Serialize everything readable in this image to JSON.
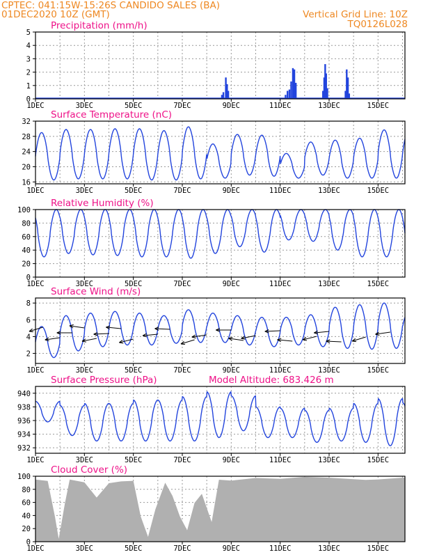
{
  "header": {
    "line1_left": "CPTEC:  041:15W-15:26S  CANDIDO SALES (BA)",
    "line2_left": "01DEC2020 10Z (GMT)",
    "line1_right": "Vertical Grid Line: 10Z",
    "line2_right": "TQ0126L028"
  },
  "colors": {
    "header": "#ee8822",
    "title": "#ee1188",
    "series": "#2244dd",
    "cloud": "#b0b0b0",
    "grid": "#999999"
  },
  "x_tick_labels": [
    "1DEC",
    "3DEC",
    "5DEC",
    "7DEC",
    "9DEC",
    "11DEC",
    "13DEC",
    "15DEC"
  ],
  "x_ticks_days": [
    0,
    2,
    4,
    6,
    8,
    10,
    12,
    14
  ],
  "x_domain_days": [
    0,
    15.1
  ],
  "panels": [
    {
      "key": "precip",
      "title": "Precipitation (mm/h)",
      "yticks": [
        0,
        1,
        2,
        3,
        4,
        5
      ],
      "ylim": [
        0,
        5
      ]
    },
    {
      "key": "temp",
      "title": "Surface Temperature (nC)",
      "yticks": [
        16,
        20,
        24,
        28,
        32
      ],
      "ylim": [
        15.5,
        32
      ]
    },
    {
      "key": "rh",
      "title": "Relative Humidity (%)",
      "yticks": [
        0,
        20,
        40,
        60,
        80,
        100
      ],
      "ylim": [
        0,
        100
      ]
    },
    {
      "key": "wind",
      "title": "Surface Wind (m/s)",
      "yticks": [
        2,
        4,
        6,
        8
      ],
      "ylim": [
        0.8,
        8.6
      ]
    },
    {
      "key": "pres",
      "title": "Surface Pressure (hPa)",
      "extra": "Model Altitude: 683.426 m",
      "yticks": [
        932,
        934,
        936,
        938,
        940
      ],
      "ylim": [
        931.2,
        941
      ]
    },
    {
      "key": "cloud",
      "title": "Cloud Cover (%)",
      "yticks": [
        0,
        20,
        40,
        60,
        80,
        100
      ],
      "ylim": [
        0,
        100
      ]
    }
  ],
  "chart_data": [
    {
      "type": "bar",
      "title": "Precipitation (mm/h)",
      "ylim": [
        0,
        5
      ],
      "x_unit": "days since 01DEC2020 10Z",
      "events": [
        {
          "day": 7.62,
          "mm_h": 0.3
        },
        {
          "day": 7.68,
          "mm_h": 0.5
        },
        {
          "day": 7.78,
          "mm_h": 1.6
        },
        {
          "day": 7.83,
          "mm_h": 1.1
        },
        {
          "day": 7.88,
          "mm_h": 0.6
        },
        {
          "day": 10.22,
          "mm_h": 0.3
        },
        {
          "day": 10.3,
          "mm_h": 0.6
        },
        {
          "day": 10.38,
          "mm_h": 0.7
        },
        {
          "day": 10.45,
          "mm_h": 1.3
        },
        {
          "day": 10.52,
          "mm_h": 2.3
        },
        {
          "day": 10.58,
          "mm_h": 2.2
        },
        {
          "day": 10.64,
          "mm_h": 1.2
        },
        {
          "day": 11.75,
          "mm_h": 0.6
        },
        {
          "day": 11.8,
          "mm_h": 1.6
        },
        {
          "day": 11.84,
          "mm_h": 2.6
        },
        {
          "day": 11.88,
          "mm_h": 1.9
        },
        {
          "day": 11.93,
          "mm_h": 0.8
        },
        {
          "day": 12.67,
          "mm_h": 0.6
        },
        {
          "day": 12.72,
          "mm_h": 2.2
        },
        {
          "day": 12.77,
          "mm_h": 1.6
        },
        {
          "day": 12.82,
          "mm_h": 0.4
        }
      ]
    },
    {
      "type": "line",
      "title": "Surface Temperature (nC)",
      "ylim": [
        15.5,
        32
      ],
      "daily_min": [
        16.5,
        16.8,
        16.8,
        16.8,
        16.5,
        16.5,
        16.8,
        17.0,
        17.8,
        17.5,
        17.0,
        17.8,
        17.0,
        17.0,
        17.0,
        16.5
      ],
      "daily_max": [
        29.0,
        29.8,
        29.8,
        30.0,
        30.0,
        29.5,
        30.5,
        26.0,
        28.5,
        28.3,
        23.5,
        26.5,
        27.0,
        27.5,
        29.7,
        29.5
      ]
    },
    {
      "type": "line",
      "title": "Relative Humidity (%)",
      "ylim": [
        0,
        100
      ],
      "daily_min": [
        30,
        35,
        33,
        32,
        30,
        30,
        28,
        35,
        45,
        37,
        55,
        53,
        40,
        30,
        30,
        30
      ],
      "daily_max": [
        100,
        100,
        100,
        100,
        100,
        100,
        100,
        100,
        100,
        100,
        100,
        100,
        100,
        100,
        100,
        100
      ]
    },
    {
      "type": "line",
      "title": "Surface Wind (m/s)",
      "ylim": [
        0.8,
        8.6
      ],
      "daily_min": [
        1.5,
        2.3,
        2.8,
        3.0,
        3.0,
        3.2,
        3.3,
        3.3,
        3.0,
        2.8,
        3.0,
        2.8,
        2.6,
        2.5,
        2.6,
        3.0
      ],
      "daily_max": [
        5.2,
        6.5,
        6.8,
        7.0,
        6.8,
        6.5,
        7.2,
        6.8,
        6.5,
        6.3,
        6.3,
        6.6,
        7.5,
        7.8,
        8.0,
        7.0
      ],
      "wind_vectors_days": [
        0.3,
        1.0,
        1.5,
        2.0,
        2.5,
        3.0,
        3.5,
        4.0,
        5.0,
        5.5,
        6.5,
        7.0,
        8.0,
        8.5,
        9.0,
        10.0,
        10.5,
        11.5,
        12.0,
        12.5,
        13.5,
        14.5
      ]
    },
    {
      "type": "line",
      "title": "Surface Pressure (hPa)",
      "ylim": [
        931.2,
        941
      ],
      "daily_min": [
        935.8,
        933.8,
        933.0,
        933.0,
        933.0,
        933.0,
        933.0,
        933.5,
        934.5,
        933.5,
        933.5,
        932.8,
        933.0,
        932.8,
        932.3,
        932.5
      ],
      "daily_max": [
        938.8,
        938.2,
        938.5,
        938.5,
        939.0,
        939.0,
        939.5,
        940.2,
        939.6,
        938.0,
        937.8,
        937.5,
        937.8,
        938.5,
        939.2,
        938.6
      ]
    },
    {
      "type": "area",
      "title": "Cloud Cover (%)",
      "ylim": [
        0,
        100
      ],
      "levels": [
        {
          "day": 0.0,
          "pct": 95
        },
        {
          "day": 0.5,
          "pct": 94
        },
        {
          "day": 0.8,
          "pct": 40
        },
        {
          "day": 0.95,
          "pct": 5
        },
        {
          "day": 1.2,
          "pct": 60
        },
        {
          "day": 1.4,
          "pct": 95
        },
        {
          "day": 2.0,
          "pct": 92
        },
        {
          "day": 2.5,
          "pct": 70
        },
        {
          "day": 3.0,
          "pct": 90
        },
        {
          "day": 3.5,
          "pct": 94
        },
        {
          "day": 4.0,
          "pct": 93
        },
        {
          "day": 4.3,
          "pct": 40
        },
        {
          "day": 4.6,
          "pct": 10
        },
        {
          "day": 4.9,
          "pct": 50
        },
        {
          "day": 5.3,
          "pct": 92
        },
        {
          "day": 5.6,
          "pct": 70
        },
        {
          "day": 5.9,
          "pct": 40
        },
        {
          "day": 6.2,
          "pct": 20
        },
        {
          "day": 6.5,
          "pct": 60
        },
        {
          "day": 6.8,
          "pct": 75
        },
        {
          "day": 7.2,
          "pct": 30
        },
        {
          "day": 7.5,
          "pct": 96
        },
        {
          "day": 8.0,
          "pct": 96
        },
        {
          "day": 9.0,
          "pct": 98
        },
        {
          "day": 10.0,
          "pct": 98
        },
        {
          "day": 11.0,
          "pct": 99
        },
        {
          "day": 12.0,
          "pct": 99
        },
        {
          "day": 13.0,
          "pct": 98
        },
        {
          "day": 13.5,
          "pct": 95
        },
        {
          "day": 14.0,
          "pct": 97
        },
        {
          "day": 15.1,
          "pct": 98
        }
      ]
    }
  ]
}
